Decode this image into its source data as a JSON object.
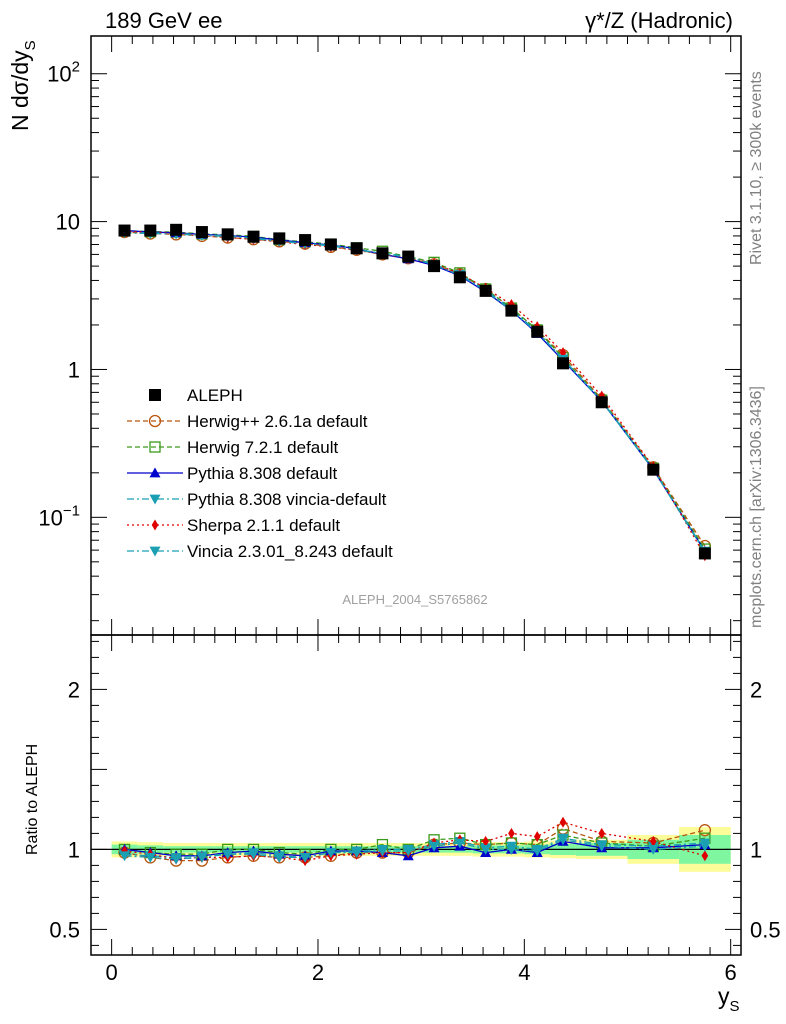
{
  "header": {
    "left": "189 GeV ee",
    "right": "γ*/Z (Hadronic)"
  },
  "side_labels": {
    "rivet": "Rivet 3.1.10, ≥ 300k events",
    "mcplots": "mcplots.cern.ch [arXiv:1306.3436]"
  },
  "analysis_label": "ALEPH_2004_S5765862",
  "colors": {
    "data": "#000000",
    "herwigpp": "#b8560f",
    "herwig7": "#3a9a1a",
    "pythia": "#0000cc",
    "pythia_vincia": "#1a9fb3",
    "sherpa": "#e00000",
    "vincia": "#1a9fb3",
    "band_inner": "#7ff7a0",
    "band_outer": "#fcfc99"
  },
  "chart_data": [
    {
      "type": "line",
      "yscale": "log",
      "ylabel": "N dσ/dy",
      "ylabel_sub": "S",
      "xlim": [
        -0.2,
        6.1
      ],
      "ylim": [
        0.016,
        180
      ],
      "yticks": [
        {
          "value": 0.1,
          "base": "10",
          "exp": "−1"
        },
        {
          "value": 1,
          "label": "1"
        },
        {
          "value": 10,
          "label": "10"
        },
        {
          "value": 100,
          "base": "10",
          "exp": "2"
        }
      ],
      "x": [
        0.125,
        0.375,
        0.625,
        0.875,
        1.125,
        1.375,
        1.625,
        1.875,
        2.125,
        2.375,
        2.625,
        2.875,
        3.125,
        3.375,
        3.625,
        3.875,
        4.125,
        4.375,
        4.75,
        5.25,
        5.75
      ],
      "data": {
        "name": "ALEPH",
        "values": [
          8.7,
          8.7,
          8.8,
          8.5,
          8.2,
          7.9,
          7.7,
          7.5,
          7.0,
          6.6,
          6.1,
          5.8,
          5.0,
          4.2,
          3.4,
          2.5,
          1.8,
          1.1,
          0.6,
          0.21,
          0.057
        ]
      },
      "series": [
        {
          "name": "Herwig++ 2.6.1a default",
          "key": "herwigpp",
          "marker": "circle-open",
          "dash": "5,3",
          "values": [
            8.5,
            8.3,
            8.2,
            8.0,
            7.8,
            7.6,
            7.35,
            7.1,
            6.75,
            6.45,
            6.0,
            5.65,
            5.15,
            4.4,
            3.5,
            2.6,
            1.85,
            1.25,
            0.63,
            0.218,
            0.064
          ]
        },
        {
          "name": "Herwig 7.2.1 default",
          "key": "herwig7",
          "marker": "square-open",
          "dash": "5,3",
          "values": [
            8.7,
            8.55,
            8.5,
            8.25,
            8.15,
            7.95,
            7.55,
            7.3,
            7.05,
            6.65,
            6.3,
            5.8,
            5.3,
            4.5,
            3.5,
            2.6,
            1.85,
            1.2,
            0.62,
            0.215,
            0.061
          ]
        },
        {
          "name": "Pythia 8.308 default",
          "key": "pythia",
          "marker": "triangle-up",
          "dash": "",
          "values": [
            8.7,
            8.5,
            8.4,
            8.2,
            8.05,
            7.85,
            7.5,
            7.2,
            6.95,
            6.55,
            6.0,
            5.6,
            5.05,
            4.3,
            3.35,
            2.5,
            1.75,
            1.15,
            0.61,
            0.21,
            0.059
          ]
        },
        {
          "name": "Pythia 8.308 vincia-default",
          "key": "pythia_vincia",
          "marker": "triangle-down",
          "dash": "7,3,2,3",
          "values": [
            8.5,
            8.4,
            8.35,
            8.15,
            8.0,
            7.75,
            7.4,
            7.15,
            6.9,
            6.5,
            6.1,
            5.8,
            5.15,
            4.4,
            3.45,
            2.55,
            1.8,
            1.18,
            0.615,
            0.212,
            0.059
          ]
        },
        {
          "name": "Sherpa 2.1.1 default",
          "key": "sherpa",
          "marker": "diamond",
          "dash": "2,3",
          "values": [
            8.6,
            8.45,
            8.3,
            8.1,
            7.8,
            7.6,
            7.3,
            7.0,
            6.75,
            6.4,
            6.0,
            5.7,
            5.2,
            4.45,
            3.55,
            2.75,
            1.95,
            1.3,
            0.66,
            0.22,
            0.055
          ]
        },
        {
          "name": "Vincia 2.3.01_8.243 default",
          "key": "vincia",
          "marker": "triangle-down",
          "dash": "7,3,2,3",
          "values": [
            8.4,
            8.3,
            8.25,
            8.05,
            7.95,
            7.7,
            7.35,
            7.1,
            6.85,
            6.45,
            6.05,
            5.75,
            5.1,
            4.35,
            3.4,
            2.5,
            1.78,
            1.17,
            0.61,
            0.21,
            0.058
          ]
        }
      ]
    },
    {
      "type": "line",
      "ylabel": "Ratio to ALEPH",
      "xlabel": "y",
      "xlabel_sub": "S",
      "xlim": [
        -0.2,
        6.1
      ],
      "ylim": [
        0.34,
        2.34
      ],
      "yticks": [
        0.5,
        1,
        2
      ],
      "xticks": [
        0,
        2,
        4,
        6
      ],
      "band_edges": [
        0,
        0.25,
        0.5,
        0.75,
        1.0,
        1.25,
        1.5,
        1.75,
        2.0,
        2.25,
        2.5,
        2.75,
        3.0,
        3.25,
        3.5,
        3.75,
        4.0,
        4.25,
        4.5,
        5.0,
        5.5,
        6.0
      ],
      "band_inner": [
        0.03,
        0.025,
        0.02,
        0.02,
        0.02,
        0.02,
        0.02,
        0.02,
        0.02,
        0.02,
        0.02,
        0.02,
        0.02,
        0.02,
        0.025,
        0.025,
        0.03,
        0.035,
        0.04,
        0.06,
        0.09
      ],
      "band_outer": [
        0.05,
        0.045,
        0.04,
        0.04,
        0.04,
        0.04,
        0.04,
        0.04,
        0.04,
        0.04,
        0.04,
        0.04,
        0.04,
        0.04,
        0.045,
        0.045,
        0.05,
        0.055,
        0.06,
        0.09,
        0.14
      ],
      "series": [
        {
          "key": "herwigpp",
          "marker": "circle-open",
          "dash": "5,3",
          "values": [
            0.98,
            0.95,
            0.93,
            0.93,
            0.95,
            0.96,
            0.95,
            0.95,
            0.96,
            0.98,
            0.98,
            0.98,
            1.03,
            1.04,
            1.03,
            1.04,
            1.03,
            1.13,
            1.05,
            1.04,
            1.12
          ]
        },
        {
          "key": "herwig7",
          "marker": "square-open",
          "dash": "5,3",
          "values": [
            1.0,
            0.98,
            0.97,
            0.97,
            1.0,
            1.0,
            0.98,
            0.97,
            1.0,
            1.0,
            1.03,
            1.0,
            1.06,
            1.07,
            1.03,
            1.04,
            1.03,
            1.09,
            1.04,
            1.02,
            1.07
          ]
        },
        {
          "key": "pythia",
          "marker": "triangle-up",
          "dash": "",
          "values": [
            1.0,
            0.98,
            0.96,
            0.96,
            0.98,
            0.99,
            0.97,
            0.96,
            0.99,
            0.99,
            0.98,
            0.96,
            1.01,
            1.02,
            0.98,
            1.0,
            0.98,
            1.05,
            1.01,
            1.01,
            1.03
          ]
        },
        {
          "key": "pythia_vincia",
          "marker": "triangle-down",
          "dash": "7,3,2,3",
          "values": [
            0.97,
            0.96,
            0.95,
            0.96,
            0.97,
            0.98,
            0.96,
            0.95,
            0.98,
            0.99,
            1.0,
            1.0,
            1.03,
            1.05,
            1.01,
            1.02,
            1.0,
            1.07,
            1.03,
            1.02,
            1.04
          ]
        },
        {
          "key": "sherpa",
          "marker": "diamond",
          "dash": "2,3",
          "values": [
            0.99,
            0.97,
            0.94,
            0.95,
            0.95,
            0.96,
            0.95,
            0.93,
            0.96,
            0.97,
            0.98,
            0.98,
            1.04,
            1.06,
            1.05,
            1.1,
            1.08,
            1.17,
            1.1,
            1.05,
            0.96
          ]
        },
        {
          "key": "vincia",
          "marker": "triangle-down",
          "dash": "7,3,2,3",
          "values": [
            0.96,
            0.95,
            0.94,
            0.95,
            0.97,
            0.97,
            0.95,
            0.95,
            0.98,
            0.98,
            0.99,
            0.99,
            1.02,
            1.04,
            1.0,
            1.0,
            0.99,
            1.06,
            1.02,
            1.0,
            1.02
          ]
        }
      ]
    }
  ]
}
